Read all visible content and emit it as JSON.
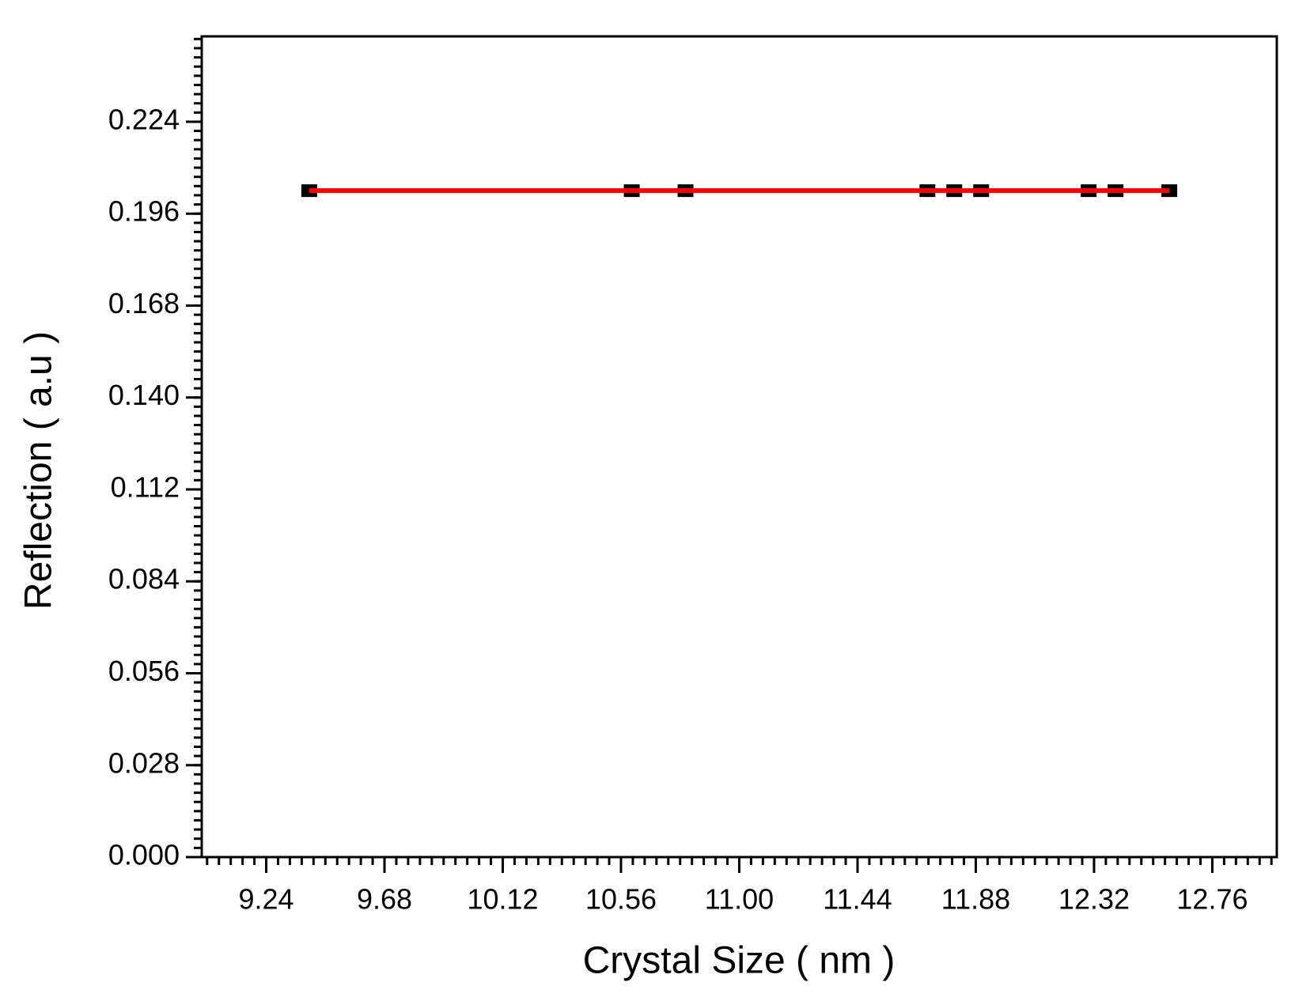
{
  "chart_data": {
    "type": "line",
    "x_label": "Crystal Size ( nm )",
    "y_label": "Reflection ( a.u )",
    "x": [
      9.4,
      10.6,
      10.8,
      11.7,
      11.8,
      11.9,
      12.3,
      12.4,
      12.6
    ],
    "series": [
      {
        "color": "#ff0000",
        "marker_color": "#000000",
        "values": [
          0.203,
          0.203,
          0.203,
          0.203,
          0.203,
          0.203,
          0.203,
          0.203,
          0.203
        ]
      }
    ],
    "xlim": [
      9.0,
      13.0
    ],
    "xticks": [
      9.24,
      9.68,
      10.12,
      10.56,
      {
        "value": 11.0,
        "label": "11.00"
      },
      11.44,
      11.88,
      12.32,
      12.76
    ],
    "ylim": [
      0,
      0.25
    ],
    "yticks": [
      {
        "value": 0,
        "label": "0.000"
      },
      0.028,
      0.056,
      0.084,
      {
        "value": 0.14,
        "label": "0.140"
      },
      0.112,
      0.168,
      0.196,
      0.224
    ],
    "minor_ticks_per_interval": 10,
    "grid": false
  }
}
